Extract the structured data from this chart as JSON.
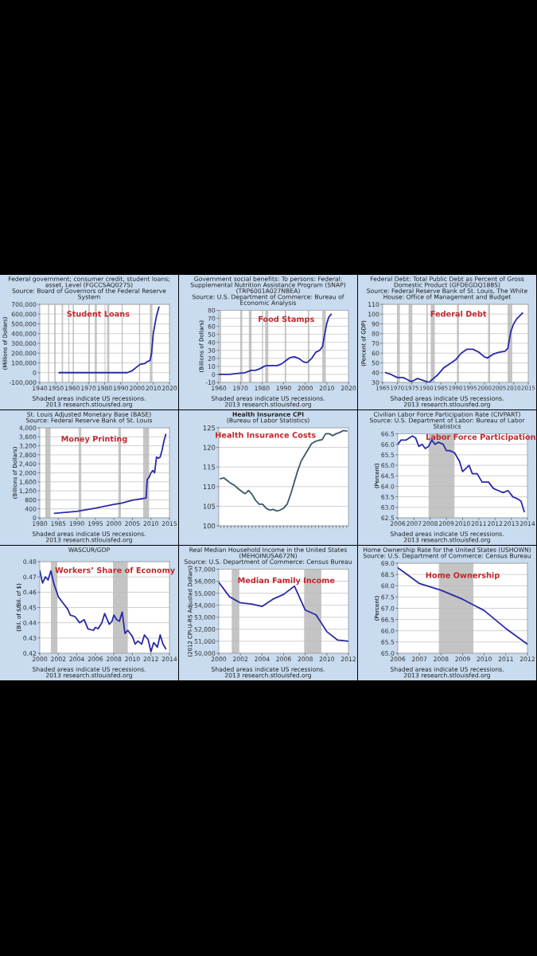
{
  "chart_data": [
    {
      "type": "line",
      "title": "Federal government; consumer credit, student loans; asset, Level (FGCCSAQ027S)",
      "subtitle": "Source: Board of Governors of the Federal Reserve System",
      "ylabel": "(Millions of Dollars)",
      "annotations": [
        "Student Loans",
        "Shaded areas indicate US recessions.",
        "2013 research.stlouisfed.org"
      ],
      "x": [
        1952,
        1960,
        1970,
        1980,
        1990,
        1994,
        1997,
        2000,
        2002,
        2005,
        2006,
        2008,
        2009,
        2010,
        2012,
        2013.5
      ],
      "series": [
        {
          "color": "#2a2aa8",
          "values": [
            0,
            0,
            0,
            0,
            0,
            0,
            20000,
            60000,
            85000,
            95000,
            110000,
            125000,
            200000,
            400000,
            580000,
            670000
          ]
        }
      ],
      "xlim": [
        1940,
        2020
      ],
      "xticks": [
        1940,
        1950,
        1960,
        1970,
        1980,
        1990,
        2000,
        2010,
        2020
      ],
      "ylim": [
        -100000,
        700000
      ],
      "yticks": [
        {
          "value": -100000,
          "label": "-100,000"
        },
        {
          "value": 0,
          "label": "0"
        },
        {
          "value": 100000,
          "label": "100,000"
        },
        {
          "value": 200000,
          "label": "200,000"
        },
        {
          "value": 300000,
          "label": "300,000"
        },
        {
          "value": 400000,
          "label": "400,000"
        },
        {
          "value": 500000,
          "label": "500,000"
        },
        {
          "value": 600000,
          "label": "600,000"
        },
        {
          "value": 700000,
          "label": "700,000"
        }
      ],
      "bands": [
        {
          "axis": "x",
          "from": 1945.1,
          "to": 1945.8,
          "color": "#c4c4c4"
        },
        {
          "axis": "x",
          "from": 1948.9,
          "to": 1949.8,
          "color": "#c4c4c4"
        },
        {
          "axis": "x",
          "from": 1953.5,
          "to": 1954.4,
          "color": "#c4c4c4"
        },
        {
          "axis": "x",
          "from": 1957.6,
          "to": 1958.3,
          "color": "#c4c4c4"
        },
        {
          "axis": "x",
          "from": 1960.3,
          "to": 1961.1,
          "color": "#c4c4c4"
        },
        {
          "axis": "x",
          "from": 1969.9,
          "to": 1970.9,
          "color": "#c4c4c4"
        },
        {
          "axis": "x",
          "from": 1973.9,
          "to": 1975.2,
          "color": "#c4c4c4"
        },
        {
          "axis": "x",
          "from": 1980.0,
          "to": 1980.5,
          "color": "#c4c4c4"
        },
        {
          "axis": "x",
          "from": 1981.5,
          "to": 1982.9,
          "color": "#c4c4c4"
        },
        {
          "axis": "x",
          "from": 1990.5,
          "to": 1991.2,
          "color": "#c4c4c4"
        },
        {
          "axis": "x",
          "from": 2001.2,
          "to": 2001.9,
          "color": "#c4c4c4"
        },
        {
          "axis": "x",
          "from": 2007.9,
          "to": 2009.5,
          "color": "#c4c4c4"
        }
      ],
      "grid": "y"
    },
    {
      "type": "line",
      "title": "Government social benefits: To persons: Federal: Supplemental Nutrition Assistance Program (SNAP) (TRP6001A027NBEA)",
      "subtitle": "Source: U.S. Department of Commerce: Bureau of Economic Analysis",
      "ylabel": "(Billions of Dollars)",
      "annotations": [
        "Food Stamps",
        "Shaded areas indicate US recessions.",
        "2013 research.stlouisfed.org"
      ],
      "x": [
        1960,
        1965,
        1968,
        1970,
        1972,
        1974,
        1975,
        1977,
        1979,
        1981,
        1982,
        1984,
        1987,
        1989,
        1991,
        1993,
        1995,
        1997,
        1999,
        2000,
        2001,
        2003,
        2005,
        2006,
        2007,
        2008,
        2009,
        2010,
        2011,
        2012
      ],
      "series": [
        {
          "color": "#2a2aa8",
          "values": [
            0,
            0,
            1,
            1.5,
            2,
            4,
            5,
            5,
            7,
            10,
            11,
            11,
            11,
            13,
            17,
            21,
            22,
            20,
            16,
            15,
            15,
            20,
            28,
            29,
            31,
            35,
            50,
            64,
            72,
            75
          ]
        }
      ],
      "xlim": [
        1960,
        2020
      ],
      "xticks": [
        1960,
        1970,
        1980,
        1990,
        2000,
        2010,
        2020
      ],
      "ylim": [
        -10,
        80
      ],
      "yticks": [
        -10,
        0,
        10,
        20,
        30,
        40,
        50,
        60,
        70,
        80
      ],
      "bands": [
        {
          "axis": "x",
          "from": 1960.3,
          "to": 1961.1,
          "color": "#c4c4c4"
        },
        {
          "axis": "x",
          "from": 1969.9,
          "to": 1970.9,
          "color": "#c4c4c4"
        },
        {
          "axis": "x",
          "from": 1973.9,
          "to": 1975.2,
          "color": "#c4c4c4"
        },
        {
          "axis": "x",
          "from": 1980.0,
          "to": 1980.5,
          "color": "#c4c4c4"
        },
        {
          "axis": "x",
          "from": 1981.5,
          "to": 1982.9,
          "color": "#c4c4c4"
        },
        {
          "axis": "x",
          "from": 1990.5,
          "to": 1991.2,
          "color": "#c4c4c4"
        },
        {
          "axis": "x",
          "from": 2001.2,
          "to": 2001.9,
          "color": "#c4c4c4"
        },
        {
          "axis": "x",
          "from": 2007.9,
          "to": 2009.5,
          "color": "#c4c4c4"
        }
      ],
      "grid": "y"
    },
    {
      "type": "line",
      "title": "Federal Debt: Total Public Debt as Percent of Gross Domestic Product (GFDEGDQ188S)",
      "subtitle": "Source: Federal Reserve Bank of St. Louis, The White House: Office of Management and Budget",
      "ylabel": "(Percent of GDP)",
      "annotations": [
        "Federal Debt",
        "Shaded areas indicate US recessions.",
        "2013 research.stlouisfed.org"
      ],
      "x": [
        1966,
        1968,
        1970,
        1972,
        1974,
        1975,
        1977,
        1979,
        1980,
        1981,
        1982,
        1984,
        1986,
        1988,
        1990,
        1992,
        1994,
        1996,
        1998,
        2000,
        2001,
        2003,
        2005,
        2007,
        2008,
        2009,
        2010,
        2011,
        2013
      ],
      "series": [
        {
          "color": "#2a2aa8",
          "values": [
            40,
            38,
            35,
            35,
            32,
            31,
            34,
            32,
            31,
            30,
            33,
            38,
            45,
            49,
            53,
            60,
            64,
            64,
            61,
            56,
            55,
            59,
            61,
            62,
            65,
            82,
            90,
            95,
            101
          ]
        }
      ],
      "xlim": [
        1965,
        2015
      ],
      "xticks": [
        1965,
        1970,
        1975,
        1980,
        1985,
        1990,
        1995,
        2000,
        2005,
        2010,
        2015
      ],
      "ylim": [
        30,
        110
      ],
      "yticks": [
        30,
        40,
        50,
        60,
        70,
        80,
        90,
        100,
        110
      ],
      "bands": [
        {
          "axis": "x",
          "from": 1969.9,
          "to": 1970.9,
          "color": "#c4c4c4"
        },
        {
          "axis": "x",
          "from": 1973.9,
          "to": 1975.2,
          "color": "#c4c4c4"
        },
        {
          "axis": "x",
          "from": 1980.0,
          "to": 1980.5,
          "color": "#c4c4c4"
        },
        {
          "axis": "x",
          "from": 1981.5,
          "to": 1982.9,
          "color": "#c4c4c4"
        },
        {
          "axis": "x",
          "from": 1990.5,
          "to": 1991.2,
          "color": "#c4c4c4"
        },
        {
          "axis": "x",
          "from": 2001.2,
          "to": 2001.9,
          "color": "#c4c4c4"
        },
        {
          "axis": "x",
          "from": 2007.9,
          "to": 2009.5,
          "color": "#c4c4c4"
        }
      ],
      "grid": "y"
    },
    {
      "type": "line",
      "title": "St. Louis Adjusted Monetary Base (BASE)",
      "subtitle": "Source: Federal Reserve Bank of St. Louis",
      "ylabel": "(Billions of Dollars)",
      "annotations": [
        "Money Printing",
        "Shaded areas indicate US recessions.",
        "2013 research.stlouisfed.org"
      ],
      "x": [
        1984,
        1990,
        1995,
        2000,
        2002,
        2005,
        2008,
        2008.7,
        2009,
        2009.5,
        2010,
        2010.5,
        2011,
        2011.5,
        2012,
        2012.5,
        2013,
        2013.5,
        2014
      ],
      "series": [
        {
          "color": "#2a2aa8",
          "values": [
            200,
            290,
            430,
            600,
            650,
            780,
            860,
            880,
            1700,
            1800,
            2000,
            2100,
            2000,
            2700,
            2650,
            2700,
            3000,
            3400,
            3700
          ]
        }
      ],
      "xlim": [
        1980,
        2015
      ],
      "xticks": [
        1980,
        1985,
        1990,
        1995,
        2000,
        2005,
        2010,
        2015
      ],
      "ylim": [
        0,
        4000
      ],
      "yticks": [
        0,
        400,
        800,
        {
          "value": 1200,
          "label": "1,200"
        },
        {
          "value": 1600,
          "label": "1,600"
        },
        {
          "value": 2000,
          "label": "2,000"
        },
        {
          "value": 2400,
          "label": "2,400"
        },
        {
          "value": 2800,
          "label": "2,800"
        },
        {
          "value": 3200,
          "label": "3,200"
        },
        {
          "value": 3600,
          "label": "3,600"
        },
        {
          "value": 4000,
          "label": "4,000"
        }
      ],
      "bands": [
        {
          "axis": "x",
          "from": 1981.5,
          "to": 1982.9,
          "color": "#c4c4c4"
        },
        {
          "axis": "x",
          "from": 1990.5,
          "to": 1991.2,
          "color": "#c4c4c4"
        },
        {
          "axis": "x",
          "from": 2001.2,
          "to": 2001.9,
          "color": "#c4c4c4"
        },
        {
          "axis": "x",
          "from": 2007.9,
          "to": 2009.5,
          "color": "#c4c4c4"
        }
      ],
      "grid": "y"
    },
    {
      "type": "line",
      "title": "Health Insurance CPI",
      "subtitle": "(Bureau of Labor Statistics)",
      "annotations": [
        "Health Insurance Costs"
      ],
      "categories": [
        null,
        null,
        null,
        null,
        null,
        null,
        null,
        null,
        null,
        null,
        null,
        null,
        null,
        null,
        null,
        null,
        null,
        null,
        null,
        null,
        null,
        null,
        null,
        null,
        null,
        null,
        null,
        null,
        null,
        null,
        null,
        null,
        null,
        null,
        null,
        null,
        null
      ],
      "series": [
        {
          "color": "#3b5a6a",
          "values": [
            112,
            112.2,
            111.5,
            110.8,
            110.3,
            109.5,
            108.8,
            108.2,
            109,
            108,
            106.5,
            105.5,
            105.5,
            104.5,
            104,
            104.2,
            103.8,
            104,
            104.5,
            105.5,
            108,
            111,
            114,
            116.5,
            118,
            119.5,
            121,
            121.5,
            121.8,
            122,
            123.5,
            123.5,
            123,
            123.5,
            123.8,
            124.3,
            124.2
          ]
        }
      ],
      "ylim": [
        100,
        125
      ],
      "yticks": [
        100,
        105,
        110,
        115,
        120,
        125
      ],
      "grid": "y"
    },
    {
      "type": "line",
      "title": "Civilian Labor Force Participation Rate (CIVPART)",
      "subtitle": "Source: U.S. Department of Labor: Bureau of Labor Statistics",
      "ylabel": "(Percent)",
      "annotations": [
        "Labor Force Participation",
        "Shaded areas indicate US recessions.",
        "2013 research.stlouisfed.org"
      ],
      "x": [
        2006,
        2006.2,
        2006.5,
        2006.9,
        2007.1,
        2007.3,
        2007.5,
        2007.7,
        2007.9,
        2008.1,
        2008.3,
        2008.5,
        2008.8,
        2009,
        2009.2,
        2009.5,
        2009.8,
        2010,
        2010.4,
        2010.6,
        2010.9,
        2011.2,
        2011.6,
        2011.9,
        2012.2,
        2012.5,
        2012.8,
        2013.1,
        2013.4,
        2013.6,
        2013.8
      ],
      "series": [
        {
          "color": "#2a2aa8",
          "values": [
            66.0,
            66.2,
            66.2,
            66.4,
            66.3,
            65.9,
            66.0,
            65.8,
            65.9,
            66.2,
            66.0,
            66.1,
            66.0,
            65.7,
            65.7,
            65.6,
            65.2,
            64.7,
            65.0,
            64.6,
            64.6,
            64.2,
            64.2,
            63.9,
            63.8,
            63.7,
            63.8,
            63.5,
            63.4,
            63.3,
            62.8
          ]
        }
      ],
      "xlim": [
        2006,
        2014
      ],
      "xticks": [
        2006,
        2007,
        2008,
        2009,
        2010,
        2011,
        2012,
        2013,
        2014
      ],
      "ylim": [
        62.5,
        66.5
      ],
      "yticks": [
        62.5,
        {
          "value": 63,
          "label": "63.0"
        },
        63.5,
        {
          "value": 64,
          "label": "64.0"
        },
        64.5,
        {
          "value": 65,
          "label": "65.0"
        },
        65.5,
        {
          "value": 66,
          "label": "66.0"
        },
        66.5
      ],
      "bands": [
        {
          "axis": "x",
          "from": 2007.9,
          "to": 2009.5,
          "color": "#c4c4c4"
        }
      ],
      "grid": "y"
    },
    {
      "type": "line",
      "title": "WASCUR/GDP",
      "ylabel": "(Bil. of $/Bil. of $)",
      "annotations": [
        "Workers’ Share of Economy",
        "Shaded areas indicate US recessions.",
        "2013 research.stlouisfed.org"
      ],
      "x": [
        2000,
        2000.3,
        2000.6,
        2000.9,
        2001.2,
        2001.5,
        2002,
        2002.5,
        2003,
        2003.3,
        2003.8,
        2004.3,
        2004.8,
        2005.2,
        2005.8,
        2006,
        2006.3,
        2006.7,
        2007,
        2007.5,
        2007.8,
        2008,
        2008.3,
        2008.6,
        2008.9,
        2009.2,
        2009.5,
        2010,
        2010.3,
        2010.6,
        2011,
        2011.3,
        2011.7,
        2012,
        2012.3,
        2012.7,
        2013,
        2013.3,
        2013.6
      ],
      "series": [
        {
          "color": "#2a2aa8",
          "values": [
            0.474,
            0.466,
            0.47,
            0.468,
            0.474,
            0.466,
            0.457,
            0.453,
            0.449,
            0.445,
            0.444,
            0.44,
            0.442,
            0.436,
            0.435,
            0.437,
            0.436,
            0.44,
            0.446,
            0.439,
            0.441,
            0.445,
            0.442,
            0.441,
            0.447,
            0.433,
            0.435,
            0.431,
            0.426,
            0.428,
            0.426,
            0.432,
            0.429,
            0.421,
            0.427,
            0.424,
            0.432,
            0.426,
            0.423
          ]
        }
      ],
      "xlim": [
        2000,
        2014
      ],
      "xticks": [
        2000,
        2002,
        2004,
        2006,
        2008,
        2010,
        2012,
        2014
      ],
      "ylim": [
        0.42,
        0.48
      ],
      "yticks": [
        0.42,
        0.43,
        0.44,
        0.45,
        0.46,
        0.47,
        0.48
      ],
      "bands": [
        {
          "axis": "x",
          "from": 2001.2,
          "to": 2001.9,
          "color": "#c4c4c4"
        },
        {
          "axis": "x",
          "from": 2007.9,
          "to": 2009.5,
          "color": "#c4c4c4"
        }
      ],
      "grid": "y"
    },
    {
      "type": "line",
      "title": "Real Median Household Income in the United States (MEHOINUSA672N)",
      "subtitle": "Source: U.S. Department of Commerce: Census Bureau",
      "ylabel": "(2012 CPI-U-RS Adjusted Dollars)",
      "annotations": [
        "Median Family Income",
        "Shaded areas indicate US recessions.",
        "2013 research.stlouisfed.org"
      ],
      "x": [
        2000,
        2001,
        2002,
        2003,
        2004,
        2005,
        2006,
        2007,
        2008,
        2009,
        2010,
        2011,
        2012
      ],
      "series": [
        {
          "color": "#2a2aa8",
          "values": [
            55900,
            54700,
            54200,
            54100,
            53900,
            54500,
            54900,
            55600,
            53600,
            53200,
            51800,
            51100,
            51000
          ]
        }
      ],
      "xlim": [
        2000,
        2012
      ],
      "xticks": [
        2000,
        2002,
        2004,
        2006,
        2008,
        2010,
        2012
      ],
      "ylim": [
        50000,
        57000
      ],
      "yticks": [
        {
          "value": 50000,
          "label": "50,000"
        },
        {
          "value": 51000,
          "label": "51,000"
        },
        {
          "value": 52000,
          "label": "52,000"
        },
        {
          "value": 53000,
          "label": "53,000"
        },
        {
          "value": 54000,
          "label": "54,000"
        },
        {
          "value": 55000,
          "label": "55,000"
        },
        {
          "value": 56000,
          "label": "56,000"
        },
        {
          "value": 57000,
          "label": "57,000"
        }
      ],
      "bands": [
        {
          "axis": "x",
          "from": 2001.2,
          "to": 2001.9,
          "color": "#c4c4c4"
        },
        {
          "axis": "x",
          "from": 2007.9,
          "to": 2009.5,
          "color": "#c4c4c4"
        }
      ],
      "grid": "y"
    },
    {
      "type": "line",
      "title": "Home Ownership Rate for the United States (USHOWN)",
      "subtitle": "Source: U.S. Department of Commerce: Census Bureau",
      "ylabel": "(Percent)",
      "annotations": [
        "Home Ownership",
        "Shaded areas indicate US recessions.",
        "2013 research.stlouisfed.org"
      ],
      "x": [
        2006,
        2007,
        2008,
        2009,
        2010,
        2011,
        2012
      ],
      "series": [
        {
          "color": "#2a2aa8",
          "values": [
            68.8,
            68.1,
            67.8,
            67.4,
            66.9,
            66.1,
            65.4
          ]
        }
      ],
      "xlim": [
        2006,
        2012
      ],
      "xticks": [
        2006,
        2007,
        2008,
        2009,
        2010,
        2011,
        2012
      ],
      "ylim": [
        65.0,
        69.0
      ],
      "yticks": [
        {
          "value": 65,
          "label": "65.0"
        },
        65.5,
        {
          "value": 66,
          "label": "66.0"
        },
        66.5,
        {
          "value": 67,
          "label": "67.0"
        },
        67.5,
        {
          "value": 68,
          "label": "68.0"
        },
        68.5,
        {
          "value": 69,
          "label": "69.0"
        }
      ],
      "bands": [
        {
          "axis": "x",
          "from": 2007.9,
          "to": 2009.5,
          "color": "#c4c4c4"
        }
      ],
      "grid": "y"
    }
  ]
}
